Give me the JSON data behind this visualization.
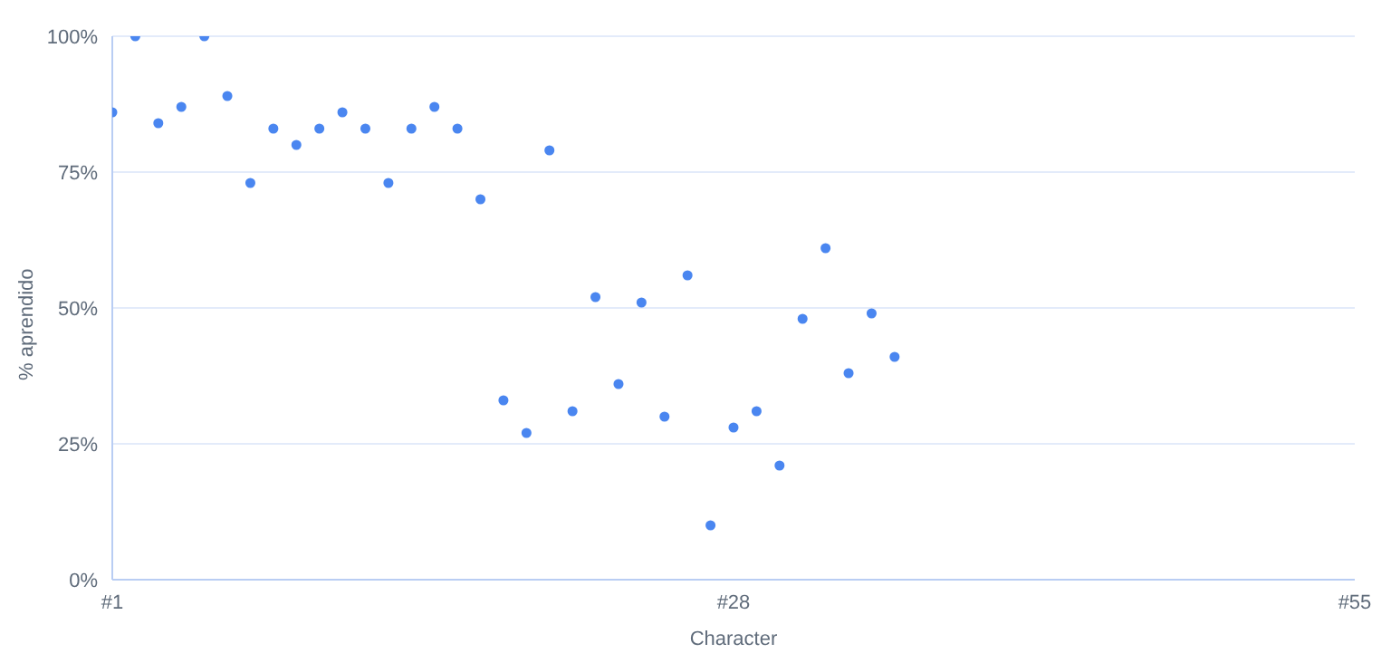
{
  "chart_data": {
    "type": "scatter",
    "xlabel": "Character",
    "ylabel": "% aprendido",
    "x": [
      1,
      2,
      3,
      4,
      5,
      6,
      7,
      8,
      9,
      10,
      11,
      12,
      13,
      14,
      15,
      16,
      17,
      18,
      19,
      20,
      21,
      22,
      23,
      24,
      25,
      26,
      27,
      28,
      29,
      30,
      31,
      32,
      33,
      34,
      35
    ],
    "values": [
      86,
      100,
      84,
      87,
      100,
      89,
      73,
      83,
      80,
      83,
      86,
      83,
      73,
      83,
      87,
      83,
      70,
      33,
      27,
      79,
      31,
      52,
      36,
      51,
      30,
      56,
      10,
      28,
      31,
      21,
      48,
      61,
      38,
      49,
      41
    ],
    "color": "#4a86f0",
    "xlim": [
      1,
      55
    ],
    "xticks": [
      {
        "value": 1,
        "label": "#1"
      },
      {
        "value": 28,
        "label": "#28"
      },
      {
        "value": 55,
        "label": "#55"
      }
    ],
    "ylim": [
      0,
      100
    ],
    "yticks": [
      {
        "value": 0,
        "label": "0%"
      },
      {
        "value": 25,
        "label": "25%"
      },
      {
        "value": 50,
        "label": "50%"
      },
      {
        "value": 75,
        "label": "75%"
      },
      {
        "value": 100,
        "label": "100%"
      }
    ],
    "grid": "y",
    "marker": "circle"
  }
}
